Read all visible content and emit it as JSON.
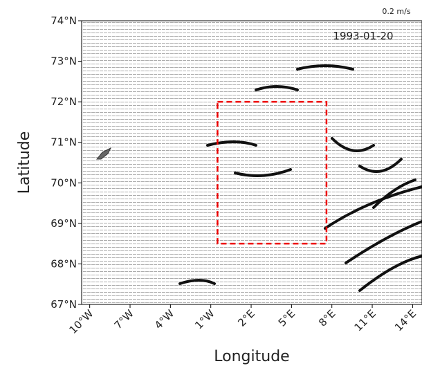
{
  "map": {
    "x_label": "Longitude",
    "y_label": "Latitude",
    "date": "1993-01-20",
    "scale_label": "0.2 m/s",
    "xlim": [
      -10.6,
      14.7
    ],
    "ylim": [
      67,
      74
    ],
    "xticks": [
      {
        "value": -10,
        "label": "10°W"
      },
      {
        "value": -7,
        "label": "7°W"
      },
      {
        "value": -4,
        "label": "4°W"
      },
      {
        "value": -1,
        "label": "1°W"
      },
      {
        "value": 2,
        "label": "2°E"
      },
      {
        "value": 5,
        "label": "5°E"
      },
      {
        "value": 8,
        "label": "8°E"
      },
      {
        "value": 11,
        "label": "11°E"
      },
      {
        "value": 14,
        "label": "14°E"
      }
    ],
    "yticks": [
      {
        "value": 67,
        "label": "67°N"
      },
      {
        "value": 68,
        "label": "68°N"
      },
      {
        "value": 69,
        "label": "69°N"
      },
      {
        "value": 70,
        "label": "70°N"
      },
      {
        "value": 71,
        "label": "71°N"
      },
      {
        "value": 72,
        "label": "72°N"
      },
      {
        "value": 73,
        "label": "73°N"
      },
      {
        "value": 74,
        "label": "74°N"
      }
    ],
    "box": {
      "lon": [
        -0.5,
        7.6
      ],
      "lat": [
        68.5,
        72
      ]
    }
  }
}
